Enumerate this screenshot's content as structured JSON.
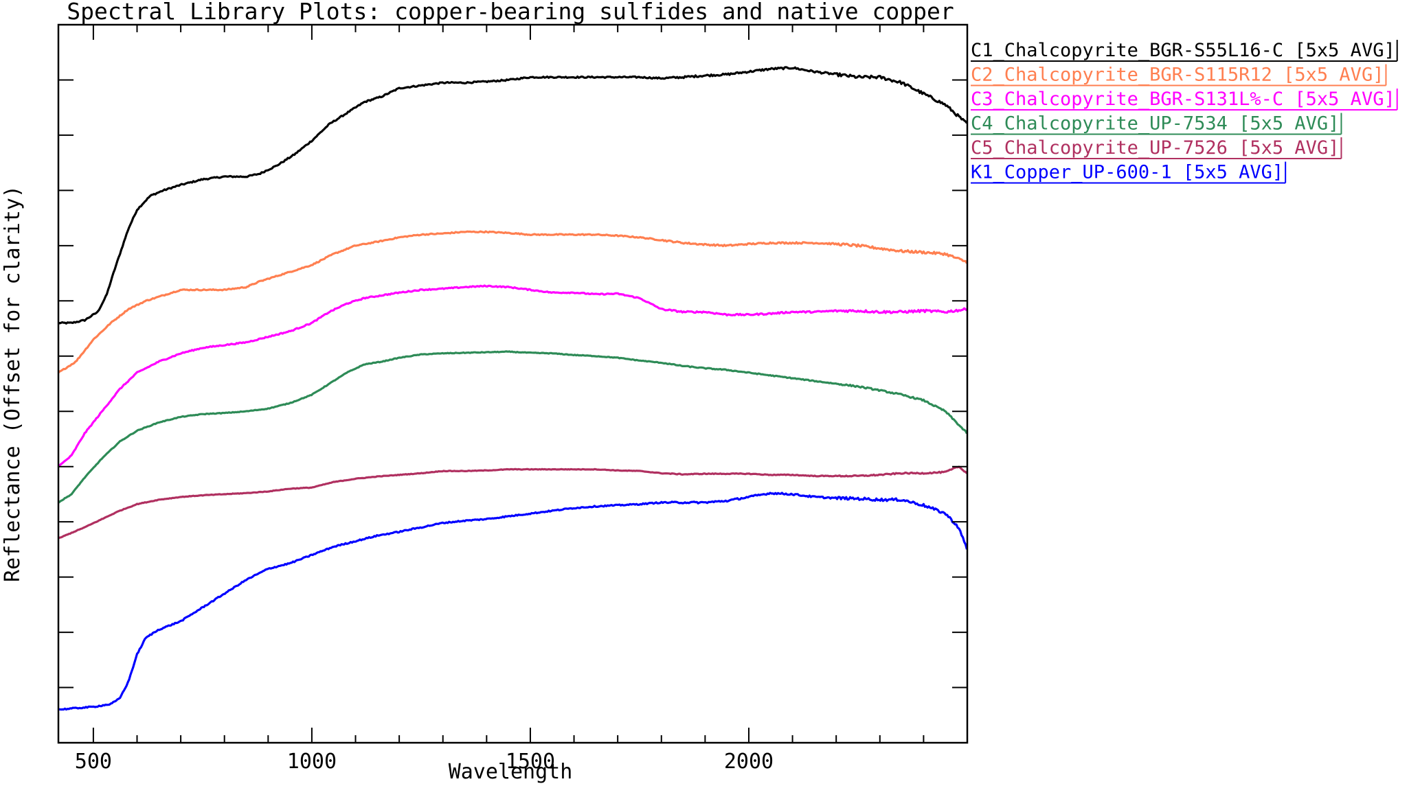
{
  "chart_data": {
    "type": "line",
    "title": "Spectral Library Plots: copper-bearing sulfides and native copper",
    "xlabel": "Wavelength",
    "ylabel": "Reflectance (Offset for clarity)",
    "xlim": [
      420,
      2500
    ],
    "ylim": [
      0,
      13
    ],
    "x_ticks": [
      500,
      1000,
      1500,
      2000
    ],
    "y_tick_count": 14,
    "y_tick_labels_shown": false,
    "legend_position": "outside-top-right",
    "series": [
      {
        "name": "C1_Chalcopyrite_BGR-S55L16-C [5x5 AVG]",
        "color": "#000000",
        "noise": 0.025,
        "x": [
          420,
          450,
          480,
          510,
          530,
          550,
          580,
          600,
          630,
          660,
          700,
          750,
          800,
          850,
          880,
          920,
          960,
          1000,
          1040,
          1080,
          1120,
          1160,
          1200,
          1250,
          1300,
          1350,
          1400,
          1450,
          1500,
          1550,
          1600,
          1650,
          1700,
          1750,
          1800,
          1850,
          1900,
          1950,
          2000,
          2050,
          2100,
          2150,
          2200,
          2250,
          2300,
          2350,
          2400,
          2450,
          2500
        ],
        "y": [
          7.6,
          7.6,
          7.65,
          7.8,
          8.1,
          8.6,
          9.3,
          9.65,
          9.9,
          10.0,
          10.1,
          10.2,
          10.25,
          10.25,
          10.3,
          10.45,
          10.65,
          10.9,
          11.2,
          11.4,
          11.6,
          11.7,
          11.85,
          11.9,
          11.95,
          11.95,
          11.97,
          12.0,
          12.05,
          12.05,
          12.05,
          12.05,
          12.05,
          12.05,
          12.03,
          12.05,
          12.08,
          12.1,
          12.15,
          12.2,
          12.22,
          12.15,
          12.1,
          12.05,
          12.05,
          11.95,
          11.75,
          11.55,
          11.2
        ]
      },
      {
        "name": "C2_Chalcopyrite_BGR-S115R12 [5x5 AVG]",
        "color": "#ff7f50",
        "noise": 0.02,
        "x": [
          420,
          460,
          500,
          540,
          580,
          620,
          660,
          700,
          750,
          800,
          850,
          880,
          920,
          960,
          1000,
          1050,
          1100,
          1150,
          1200,
          1250,
          1300,
          1350,
          1400,
          1450,
          1500,
          1550,
          1600,
          1650,
          1700,
          1750,
          1800,
          1850,
          1900,
          1950,
          2000,
          2050,
          2100,
          2150,
          2200,
          2250,
          2300,
          2350,
          2400,
          2450,
          2500
        ],
        "y": [
          6.7,
          6.9,
          7.3,
          7.6,
          7.85,
          8.0,
          8.1,
          8.2,
          8.2,
          8.2,
          8.25,
          8.35,
          8.45,
          8.55,
          8.65,
          8.85,
          9.0,
          9.07,
          9.15,
          9.2,
          9.22,
          9.25,
          9.25,
          9.23,
          9.2,
          9.2,
          9.2,
          9.2,
          9.18,
          9.15,
          9.1,
          9.05,
          9.02,
          9.0,
          9.03,
          9.05,
          9.05,
          9.05,
          9.03,
          9.0,
          8.95,
          8.9,
          8.88,
          8.85,
          8.7
        ]
      },
      {
        "name": "C3_Chalcopyrite_BGR-S131L%-C [5x5 AVG]",
        "color": "#ff00ff",
        "noise": 0.02,
        "x": [
          420,
          450,
          480,
          520,
          560,
          600,
          650,
          700,
          750,
          800,
          850,
          900,
          950,
          1000,
          1040,
          1080,
          1120,
          1160,
          1200,
          1250,
          1300,
          1350,
          1400,
          1450,
          1500,
          1550,
          1600,
          1650,
          1700,
          1750,
          1800,
          1850,
          1900,
          1950,
          2000,
          2050,
          2100,
          2150,
          2200,
          2250,
          2300,
          2350,
          2400,
          2450,
          2500
        ],
        "y": [
          5.0,
          5.2,
          5.6,
          6.0,
          6.4,
          6.7,
          6.9,
          7.05,
          7.15,
          7.2,
          7.25,
          7.35,
          7.45,
          7.6,
          7.8,
          7.95,
          8.05,
          8.1,
          8.15,
          8.2,
          8.22,
          8.25,
          8.27,
          8.25,
          8.2,
          8.15,
          8.15,
          8.12,
          8.13,
          8.05,
          7.85,
          7.8,
          7.8,
          7.75,
          7.75,
          7.77,
          7.8,
          7.8,
          7.82,
          7.82,
          7.8,
          7.8,
          7.82,
          7.8,
          7.85
        ]
      },
      {
        "name": "C4_Chalcopyrite_UP-7534 [5x5 AVG]",
        "color": "#2e8b57",
        "noise": 0.012,
        "x": [
          420,
          450,
          480,
          520,
          560,
          600,
          650,
          700,
          750,
          800,
          850,
          900,
          950,
          1000,
          1040,
          1080,
          1120,
          1160,
          1200,
          1250,
          1300,
          1350,
          1400,
          1450,
          1500,
          1550,
          1600,
          1650,
          1700,
          1750,
          1800,
          1850,
          1900,
          1950,
          2000,
          2050,
          2100,
          2150,
          2200,
          2250,
          2300,
          2350,
          2400,
          2450,
          2500
        ],
        "y": [
          4.35,
          4.5,
          4.8,
          5.15,
          5.45,
          5.65,
          5.8,
          5.9,
          5.95,
          5.97,
          6.0,
          6.05,
          6.15,
          6.3,
          6.5,
          6.7,
          6.85,
          6.9,
          6.97,
          7.03,
          7.05,
          7.06,
          7.07,
          7.08,
          7.06,
          7.05,
          7.02,
          7.0,
          6.97,
          6.92,
          6.88,
          6.82,
          6.78,
          6.75,
          6.7,
          6.65,
          6.6,
          6.55,
          6.5,
          6.45,
          6.38,
          6.3,
          6.2,
          6.0,
          5.6
        ]
      },
      {
        "name": "C5_Chalcopyrite_UP-7526 [5x5 AVG]",
        "color": "#b03060",
        "noise": 0.01,
        "x": [
          420,
          450,
          480,
          520,
          560,
          600,
          650,
          700,
          750,
          800,
          850,
          900,
          950,
          1000,
          1050,
          1100,
          1150,
          1200,
          1250,
          1300,
          1350,
          1400,
          1450,
          1500,
          1550,
          1600,
          1650,
          1700,
          1750,
          1800,
          1850,
          1900,
          1950,
          2000,
          2050,
          2100,
          2150,
          2200,
          2250,
          2300,
          2350,
          2400,
          2450,
          2480,
          2500
        ],
        "y": [
          3.7,
          3.8,
          3.9,
          4.05,
          4.2,
          4.32,
          4.4,
          4.45,
          4.48,
          4.5,
          4.52,
          4.55,
          4.6,
          4.62,
          4.72,
          4.78,
          4.82,
          4.85,
          4.88,
          4.92,
          4.92,
          4.93,
          4.95,
          4.95,
          4.95,
          4.95,
          4.95,
          4.93,
          4.92,
          4.88,
          4.86,
          4.87,
          4.87,
          4.87,
          4.85,
          4.85,
          4.83,
          4.83,
          4.83,
          4.85,
          4.88,
          4.88,
          4.9,
          5.0,
          4.88
        ]
      },
      {
        "name": "K1_Copper_UP-600-1 [5x5 AVG]",
        "color": "#0000ff",
        "noise": 0.022,
        "x": [
          420,
          450,
          500,
          540,
          560,
          580,
          600,
          620,
          650,
          700,
          750,
          800,
          850,
          900,
          950,
          1000,
          1050,
          1100,
          1150,
          1200,
          1250,
          1300,
          1350,
          1400,
          1450,
          1500,
          1550,
          1600,
          1650,
          1700,
          1750,
          1800,
          1850,
          1900,
          1950,
          2000,
          2050,
          2100,
          2150,
          2200,
          2250,
          2300,
          2350,
          2400,
          2450,
          2480,
          2500
        ],
        "y": [
          0.6,
          0.62,
          0.65,
          0.7,
          0.8,
          1.1,
          1.6,
          1.9,
          2.05,
          2.2,
          2.45,
          2.7,
          2.95,
          3.15,
          3.25,
          3.4,
          3.55,
          3.65,
          3.75,
          3.82,
          3.9,
          3.98,
          4.02,
          4.05,
          4.1,
          4.15,
          4.2,
          4.25,
          4.28,
          4.3,
          4.32,
          4.35,
          4.35,
          4.35,
          4.38,
          4.45,
          4.52,
          4.5,
          4.45,
          4.43,
          4.42,
          4.4,
          4.4,
          4.3,
          4.15,
          3.9,
          3.5
        ]
      }
    ]
  }
}
